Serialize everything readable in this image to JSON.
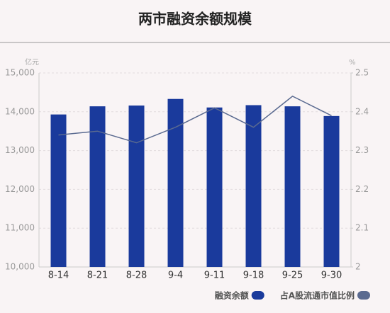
{
  "chart_data": {
    "type": "bar-line",
    "title": "两市融资余额规模",
    "y_label": "亿元",
    "y2_label": "%",
    "categories": [
      "8-14",
      "8-21",
      "8-28",
      "9-4",
      "9-11",
      "9-18",
      "9-25",
      "9-30"
    ],
    "series": [
      {
        "name": "融资余额",
        "type": "bar",
        "color": "#1a3a9c",
        "values": [
          13930,
          14140,
          14160,
          14330,
          14110,
          14170,
          14140,
          13890
        ]
      },
      {
        "name": "占A股流通市值比例",
        "type": "line",
        "axis": "y2",
        "color": "#5a6a90",
        "values": [
          2.34,
          2.35,
          2.32,
          2.36,
          2.41,
          2.36,
          2.44,
          2.39
        ]
      }
    ],
    "ylim": [
      10000,
      15000
    ],
    "yticks": [
      {
        "value": 10000,
        "label": "10,000"
      },
      {
        "value": 11000,
        "label": "11,000"
      },
      {
        "value": 12000,
        "label": "12,000"
      },
      {
        "value": 13000,
        "label": "13,000"
      },
      {
        "value": 14000,
        "label": "14,000"
      },
      {
        "value": 15000,
        "label": "15,000"
      }
    ],
    "y2lim": [
      2,
      2.5
    ],
    "y2ticks": [
      2,
      2.1,
      2.2,
      2.3,
      2.4,
      2.5
    ],
    "grid": true
  }
}
